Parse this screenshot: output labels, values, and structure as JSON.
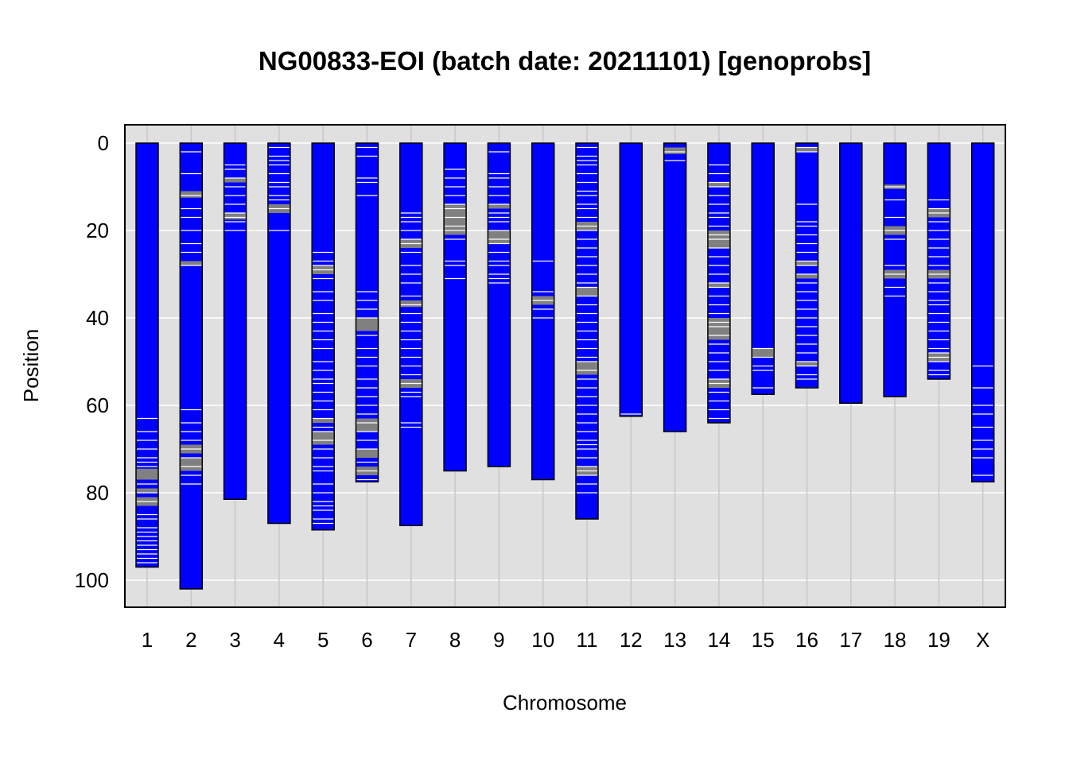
{
  "chart_data": {
    "type": "chromosome-ideogram",
    "title": "NG00833-EOI (batch date: 20211101) [genoprobs]",
    "xlabel": "Chromosome",
    "ylabel": "Position",
    "categories": [
      "1",
      "2",
      "3",
      "4",
      "5",
      "6",
      "7",
      "8",
      "9",
      "10",
      "11",
      "12",
      "13",
      "14",
      "15",
      "16",
      "17",
      "18",
      "19",
      "X"
    ],
    "lengths": [
      97,
      102,
      81.5,
      87,
      88.5,
      77.5,
      87.5,
      75,
      74,
      77,
      86,
      62.5,
      66,
      64,
      57.5,
      56,
      59.5,
      58,
      54,
      77.5
    ],
    "ylim": [
      0,
      105
    ],
    "yticks": [
      0,
      20,
      40,
      60,
      80,
      100
    ],
    "grid": true,
    "colors": {
      "chromosome_fill": "#0000FF",
      "panel_background": "#E0E0E0",
      "gridline": "#FFFFFF",
      "marker_white": "#FFFFFF",
      "marker_gray": "#808080"
    },
    "markers": [
      {
        "chr": "1",
        "white": [
          63,
          66,
          68,
          70,
          72,
          73,
          74,
          78,
          80,
          82,
          85,
          86,
          88,
          89,
          90,
          91,
          92,
          93,
          94,
          95,
          96
        ],
        "gray": [
          [
            74.5,
            77
          ],
          [
            79,
            80
          ],
          [
            81,
            83
          ]
        ]
      },
      {
        "chr": "2",
        "white": [
          2,
          7,
          12,
          15,
          17,
          20,
          23,
          25,
          28,
          61,
          64,
          66,
          68,
          70,
          72,
          74,
          76,
          78
        ],
        "gray": [
          [
            11,
            12.5
          ],
          [
            27,
            28
          ],
          [
            69,
            71
          ],
          [
            72,
            75
          ]
        ]
      },
      {
        "chr": "3",
        "white": [
          5,
          6,
          8,
          10,
          12,
          14,
          16,
          17,
          18,
          20
        ],
        "gray": [
          [
            8,
            9
          ],
          [
            16,
            17.5
          ]
        ]
      },
      {
        "chr": "4",
        "white": [
          1,
          3,
          4,
          5,
          7,
          9,
          10,
          12,
          13,
          15,
          20
        ],
        "gray": [
          [
            14,
            16
          ]
        ]
      },
      {
        "chr": "5",
        "white": [
          25,
          27,
          28,
          29,
          31,
          34,
          36,
          39,
          41,
          43,
          45,
          47,
          50,
          52,
          54,
          55,
          57,
          59,
          61,
          63,
          65,
          66,
          68,
          70,
          72,
          74,
          75,
          78,
          80,
          82,
          83,
          84,
          86,
          87
        ],
        "gray": [
          [
            28,
            30
          ],
          [
            63,
            64
          ],
          [
            66,
            69
          ]
        ]
      },
      {
        "chr": "6",
        "white": [
          1,
          3,
          8,
          9,
          12,
          34,
          36,
          38,
          40,
          44,
          47,
          49,
          51,
          54,
          56,
          58,
          60,
          62,
          64,
          66,
          68,
          70,
          73,
          75,
          77
        ],
        "gray": [
          [
            40,
            43
          ],
          [
            63,
            66
          ],
          [
            70,
            72
          ],
          [
            74,
            76
          ]
        ]
      },
      {
        "chr": "7",
        "white": [
          16,
          17,
          18,
          20,
          22,
          23,
          25,
          28,
          30,
          32,
          35,
          37,
          39,
          41,
          43,
          45,
          47,
          49,
          51,
          53,
          55,
          57,
          58,
          64,
          65
        ],
        "gray": [
          [
            22,
            24
          ],
          [
            36,
            37.5
          ],
          [
            54,
            56
          ]
        ]
      },
      {
        "chr": "8",
        "white": [
          6,
          8,
          10,
          12,
          14,
          15,
          17,
          19,
          20,
          22,
          27,
          28,
          31
        ],
        "gray": [
          [
            14,
            21
          ]
        ]
      },
      {
        "chr": "9",
        "white": [
          0,
          2,
          7,
          8,
          10,
          12,
          14,
          16,
          17,
          18,
          20,
          22,
          23,
          25,
          27,
          28,
          30,
          31,
          32
        ],
        "gray": [
          [
            14,
            15
          ],
          [
            20,
            23
          ]
        ]
      },
      {
        "chr": "10",
        "white": [
          27,
          34,
          36,
          38,
          40
        ],
        "gray": [
          [
            35,
            37
          ]
        ]
      },
      {
        "chr": "11",
        "white": [
          1,
          3,
          4,
          5,
          7,
          9,
          11,
          12,
          14,
          15,
          17,
          19,
          20,
          22,
          24,
          26,
          28,
          30,
          32,
          33,
          35,
          37,
          39,
          41,
          43,
          45,
          47,
          49,
          50,
          52,
          54,
          56,
          58,
          60,
          62,
          64,
          66,
          68,
          69,
          70,
          72,
          74,
          75,
          76,
          78,
          80
        ],
        "gray": [
          [
            18,
            20
          ],
          [
            33,
            35
          ],
          [
            50,
            53
          ],
          [
            74,
            76
          ]
        ]
      },
      {
        "chr": "12",
        "white": [
          62
        ],
        "gray": []
      },
      {
        "chr": "13",
        "white": [
          2,
          4
        ],
        "gray": [
          [
            1,
            2.5
          ]
        ]
      },
      {
        "chr": "14",
        "white": [
          5,
          7,
          9,
          10,
          12,
          14,
          16,
          17,
          19,
          21,
          22,
          24,
          26,
          28,
          30,
          32,
          33,
          35,
          37,
          39,
          41,
          42,
          44,
          46,
          48,
          50,
          52,
          54,
          55,
          57,
          59,
          61,
          63
        ],
        "gray": [
          [
            9,
            10
          ],
          [
            20,
            24
          ],
          [
            32,
            33
          ],
          [
            40,
            45
          ],
          [
            54,
            56
          ]
        ]
      },
      {
        "chr": "15",
        "white": [
          47,
          49,
          51,
          52,
          56
        ],
        "gray": [
          [
            47,
            49
          ]
        ]
      },
      {
        "chr": "16",
        "white": [
          1,
          2,
          14,
          18,
          19,
          21,
          23,
          25,
          27,
          28,
          30,
          32,
          34,
          36,
          38,
          40,
          42,
          44,
          46,
          48,
          50,
          51,
          53,
          54,
          56
        ],
        "gray": [
          [
            1,
            2
          ],
          [
            27,
            28
          ],
          [
            30,
            31
          ],
          [
            50,
            51
          ]
        ]
      },
      {
        "chr": "17",
        "white": [],
        "gray": []
      },
      {
        "chr": "18",
        "white": [
          10,
          13,
          17,
          20,
          22,
          28,
          30,
          33,
          35
        ],
        "gray": [
          [
            9.5,
            10.5
          ],
          [
            19,
            21
          ],
          [
            29,
            31
          ]
        ]
      },
      {
        "chr": "19",
        "white": [
          13,
          15,
          16,
          18,
          20,
          22,
          24,
          26,
          28,
          30,
          32,
          34,
          36,
          37,
          39,
          41,
          43,
          45,
          47,
          48,
          49,
          50,
          52,
          53
        ],
        "gray": [
          [
            15,
            17
          ],
          [
            29,
            31
          ],
          [
            48,
            50
          ]
        ]
      },
      {
        "chr": "X",
        "white": [
          51,
          56,
          60,
          62,
          65,
          68,
          70,
          72,
          76
        ],
        "gray": []
      }
    ]
  }
}
